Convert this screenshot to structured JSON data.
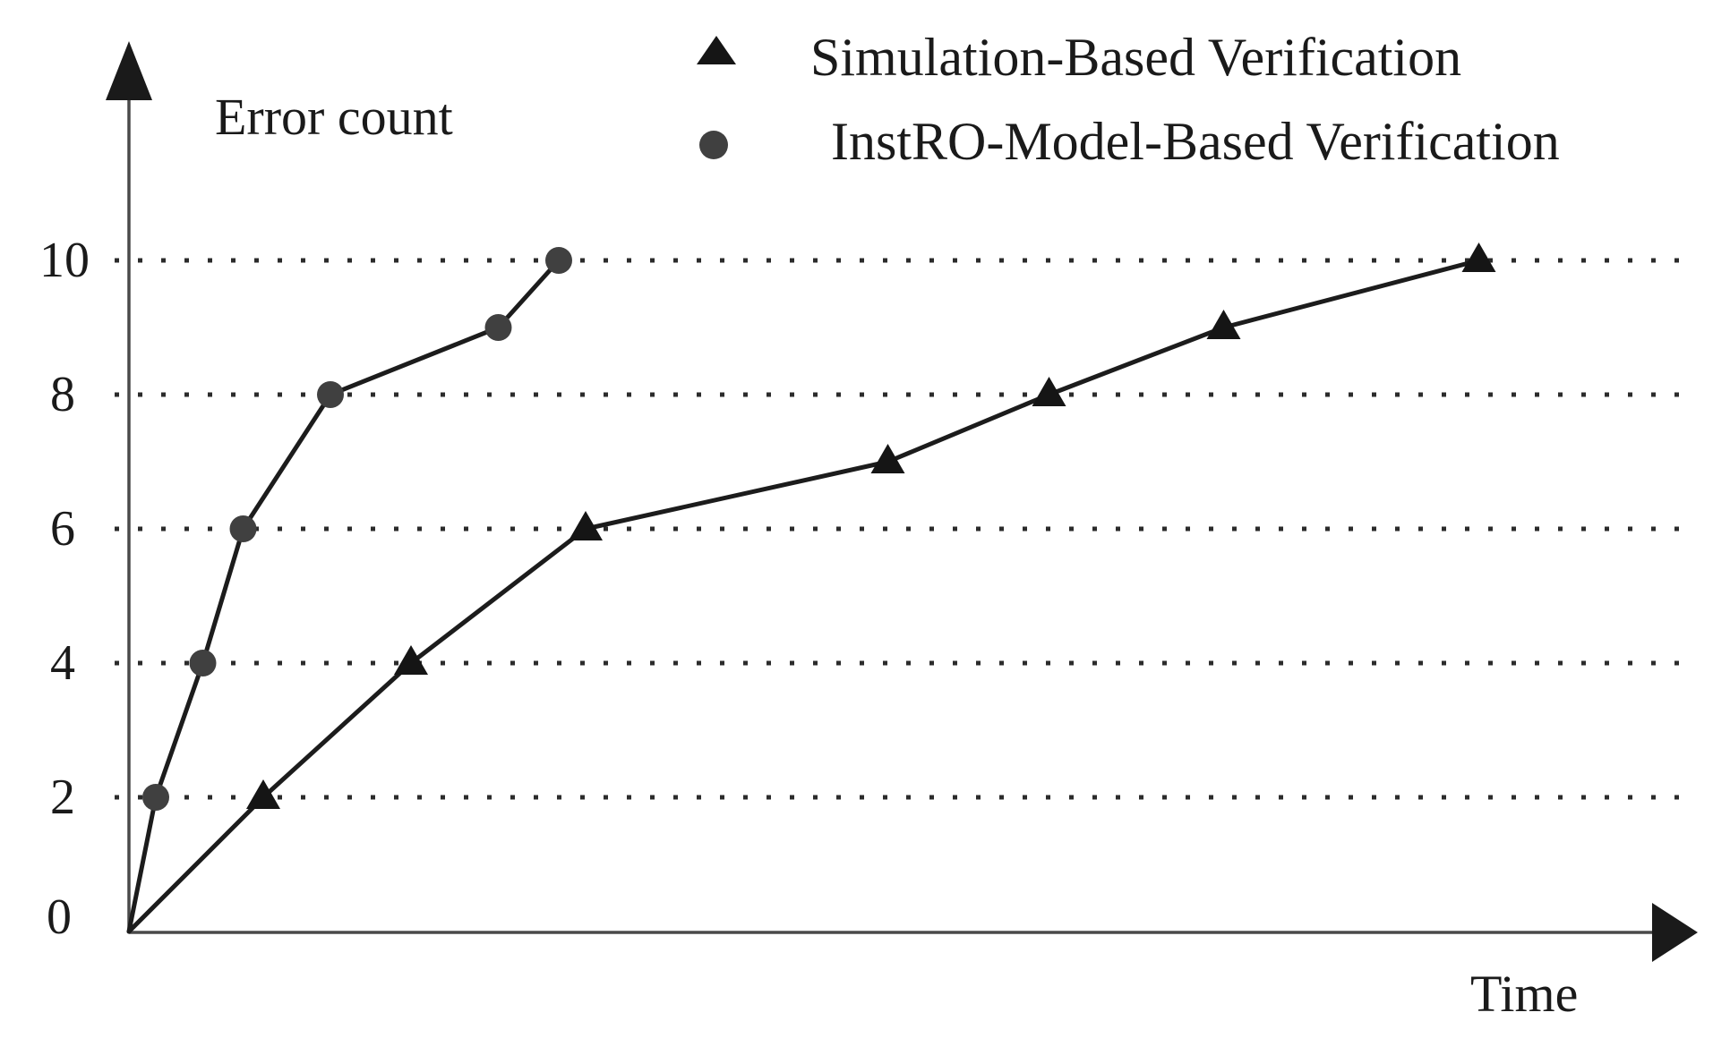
{
  "figure": {
    "y_axis_label": "Error count",
    "x_axis_label": "Time",
    "tick_labels": [
      "0",
      "2",
      "4",
      "6",
      "8",
      "10"
    ],
    "background_color": "#ffffff",
    "axis_color": "#4a4a4a",
    "gridline_color": "#2b2b2b",
    "text_color": "#1a1a1a"
  },
  "legend": {
    "items": [
      {
        "label": "Simulation-Based Verification",
        "marker": "triangle",
        "color": "#151515"
      },
      {
        "label": "InstRO-Model-Based Verification",
        "marker": "circle",
        "color": "#404040"
      }
    ]
  },
  "chart_data": {
    "type": "line",
    "title": "",
    "xlabel": "Time",
    "ylabel": "Error count",
    "x_units": "unlabeled time axis (relative units estimated from pixel positions)",
    "xlim": [
      0,
      11.6
    ],
    "ylim": [
      0,
      11.9
    ],
    "yticks": [
      0,
      2,
      4,
      6,
      8,
      10
    ],
    "grid": "horizontal dotted lines at y = 2, 4, 6, 8, 10",
    "legend_position": "top-center",
    "series": [
      {
        "name": "Simulation-Based Verification",
        "marker": "triangle",
        "marker_color": "#151515",
        "line_color": "#1c1c1c",
        "x": [
          0,
          1.0,
          2.1,
          3.4,
          5.65,
          6.85,
          8.15,
          10.05
        ],
        "y": [
          0,
          2,
          4,
          6,
          7,
          8,
          9,
          10
        ]
      },
      {
        "name": "InstRO-Model-Based Verification",
        "marker": "circle",
        "marker_color": "#404040",
        "line_color": "#1c1c1c",
        "x": [
          0,
          0.2,
          0.55,
          0.85,
          1.5,
          2.75,
          3.2
        ],
        "y": [
          0,
          2,
          4,
          6,
          8,
          9,
          10
        ]
      }
    ]
  }
}
